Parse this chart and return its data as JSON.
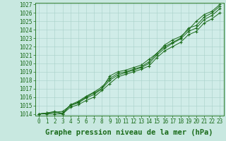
{
  "background_color": "#c8e8e0",
  "plot_bg_color": "#d0ece8",
  "grid_color": "#a8d0c8",
  "line_color": "#1a6b1a",
  "title": "Graphe pression niveau de la mer (hPa)",
  "xlim": [
    0,
    23
  ],
  "ylim": [
    1014,
    1027
  ],
  "yticks": [
    1014,
    1015,
    1016,
    1017,
    1018,
    1019,
    1020,
    1021,
    1022,
    1023,
    1024,
    1025,
    1026,
    1027
  ],
  "xticks": [
    0,
    1,
    2,
    3,
    4,
    5,
    6,
    7,
    8,
    9,
    10,
    11,
    12,
    13,
    14,
    15,
    16,
    17,
    18,
    19,
    20,
    21,
    22,
    23
  ],
  "lines": [
    [
      1014.0,
      1014.1,
      1014.2,
      1014.3,
      1015.0,
      1015.4,
      1016.0,
      1016.5,
      1017.0,
      1018.5,
      1019.0,
      1019.2,
      1019.5,
      1019.8,
      1020.5,
      1021.2,
      1022.2,
      1022.8,
      1023.2,
      1024.0,
      1025.0,
      1025.8,
      1026.2,
      1027.0
    ],
    [
      1014.0,
      1014.1,
      1014.3,
      1014.0,
      1015.1,
      1015.5,
      1016.1,
      1016.6,
      1017.2,
      1018.2,
      1018.8,
      1019.0,
      1019.3,
      1019.6,
      1020.2,
      1021.2,
      1022.0,
      1022.5,
      1023.0,
      1024.2,
      1024.5,
      1025.5,
      1026.0,
      1026.8
    ],
    [
      1014.0,
      1014.1,
      1014.2,
      1014.1,
      1015.0,
      1015.3,
      1015.9,
      1016.3,
      1017.0,
      1018.0,
      1018.6,
      1018.9,
      1019.2,
      1019.5,
      1020.0,
      1021.0,
      1021.8,
      1022.4,
      1022.9,
      1023.8,
      1024.2,
      1025.2,
      1025.7,
      1026.5
    ],
    [
      1014.0,
      1014.0,
      1014.0,
      1014.0,
      1014.8,
      1015.1,
      1015.6,
      1016.0,
      1016.8,
      1017.6,
      1018.4,
      1018.7,
      1019.0,
      1019.3,
      1019.7,
      1020.7,
      1021.5,
      1022.0,
      1022.5,
      1023.4,
      1023.8,
      1024.8,
      1025.3,
      1026.0
    ]
  ],
  "tick_fontsize": 5.5,
  "title_fontsize": 7.5
}
